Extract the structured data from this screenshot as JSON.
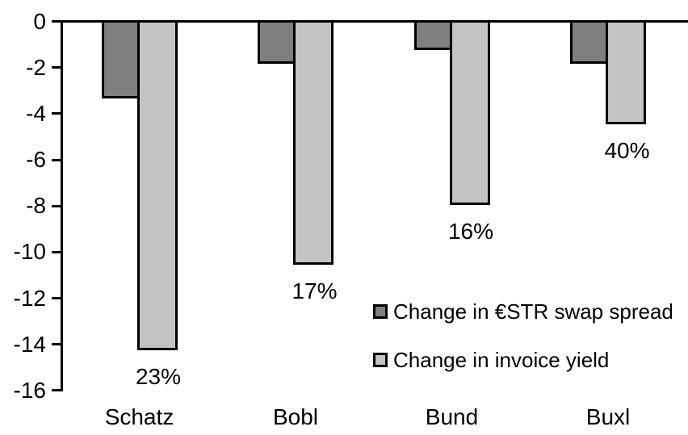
{
  "chart_data": {
    "type": "bar",
    "orientation": "vertical",
    "categories": [
      "Schatz",
      "Bobl",
      "Bund",
      "Buxl"
    ],
    "series": [
      {
        "name": "Change in €STR swap spread",
        "color": "#7f7f7f",
        "values": [
          -3.3,
          -1.8,
          -1.2,
          -1.8
        ]
      },
      {
        "name": "Change in invoice yield",
        "color": "#c3c3c3",
        "values": [
          -14.2,
          -10.5,
          -7.9,
          -4.4
        ],
        "point_labels": [
          "23%",
          "17%",
          "16%",
          "40%"
        ]
      }
    ],
    "yaxis": {
      "min": -16,
      "max": 0,
      "tick_step": 2,
      "tick_labels": [
        "0",
        "-2",
        "-4",
        "-6",
        "-8",
        "-10",
        "-12",
        "-14",
        "-16"
      ]
    },
    "legend_position": "inside-bottom-right",
    "grid": false,
    "bar_border_color": "#000000",
    "background_color": "#ffffff"
  }
}
